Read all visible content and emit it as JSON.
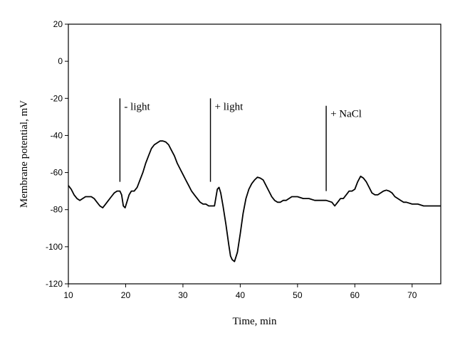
{
  "chart_data": {
    "type": "line",
    "title": "",
    "xlabel": "Time, min",
    "ylabel": "Membrane potential, mV",
    "xlim": [
      10,
      75
    ],
    "ylim": [
      -120,
      20
    ],
    "xticks": [
      10,
      20,
      30,
      40,
      50,
      60,
      70
    ],
    "yticks": [
      20,
      0,
      -20,
      -40,
      -60,
      -80,
      -100,
      -120
    ],
    "grid": false,
    "legend": "none",
    "line_color": "#000000",
    "series": [
      {
        "x": [
          10,
          10.5,
          11,
          11.5,
          12,
          12.5,
          13,
          13.5,
          14,
          14.5,
          15,
          15.5,
          16,
          16.5,
          17,
          17.5,
          18,
          18.5,
          19,
          19.3,
          19.6,
          19.9,
          20.2,
          20.6,
          21,
          21.5,
          22,
          22.5,
          23,
          23.5,
          24,
          24.5,
          25,
          25.5,
          26,
          26.5,
          27,
          27.5,
          28,
          28.5,
          29,
          29.5,
          30,
          30.5,
          31,
          31.5,
          32,
          32.5,
          33,
          33.5,
          34,
          34.5,
          35,
          35.5,
          36,
          36.3,
          36.6,
          37,
          37.5,
          38,
          38.3,
          38.6,
          39,
          39.5,
          40,
          40.5,
          41,
          41.5,
          42,
          42.5,
          43,
          43.5,
          44,
          44.5,
          45,
          45.5,
          46,
          46.5,
          47,
          47.5,
          48,
          48.5,
          49,
          49.5,
          50,
          51,
          52,
          53,
          54,
          55,
          56,
          56.5,
          57,
          57.5,
          58,
          58.5,
          59,
          59.5,
          60,
          60.5,
          61,
          61.5,
          62,
          62.5,
          63,
          63.5,
          64,
          64.5,
          65,
          65.5,
          66,
          66.5,
          67,
          67.5,
          68,
          68.5,
          69,
          70,
          71,
          72,
          73,
          74,
          75
        ],
        "y": [
          -67,
          -69,
          -72,
          -74,
          -75,
          -74,
          -73,
          -73,
          -73,
          -74,
          -76,
          -78,
          -79,
          -77,
          -75,
          -73,
          -71,
          -70,
          -70,
          -72,
          -78,
          -79,
          -76,
          -72,
          -70,
          -70,
          -68,
          -64,
          -60,
          -55,
          -51,
          -47,
          -45,
          -44,
          -43,
          -43,
          -43.5,
          -45,
          -48,
          -51,
          -55,
          -58,
          -61,
          -64,
          -67,
          -70,
          -72,
          -74,
          -76,
          -77,
          -77,
          -78,
          -78,
          -78,
          -69,
          -68,
          -71,
          -78,
          -88,
          -99,
          -105,
          -107,
          -108,
          -103,
          -93,
          -82,
          -74,
          -69,
          -66,
          -64,
          -62.5,
          -63,
          -64,
          -67,
          -70,
          -73,
          -75,
          -76,
          -76,
          -75,
          -75,
          -74,
          -73,
          -73,
          -73,
          -74,
          -74,
          -75,
          -75,
          -75,
          -76,
          -78,
          -76,
          -74,
          -74,
          -72,
          -70,
          -70,
          -69,
          -65,
          -62,
          -63,
          -65,
          -68,
          -71,
          -72,
          -72,
          -71,
          -70,
          -69.5,
          -70,
          -71,
          -73,
          -74,
          -75,
          -76,
          -76,
          -77,
          -77,
          -78,
          -78,
          -78,
          -78
        ]
      }
    ],
    "annotations": [
      {
        "label": "- light",
        "x": 19,
        "y_top": -20,
        "y_bottom": -65
      },
      {
        "label": "+ light",
        "x": 34.8,
        "y_top": -20,
        "y_bottom": -65
      },
      {
        "label": "+ NaCl",
        "x": 55,
        "y_top": -24,
        "y_bottom": -70
      }
    ]
  }
}
